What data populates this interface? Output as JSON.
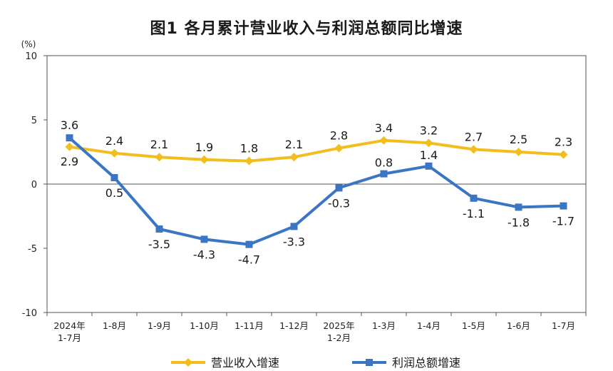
{
  "title": "图1  各月累计营业收入与利润总额同比增速",
  "chart_data": {
    "type": "line",
    "unit_label": "(%)",
    "ylim": [
      -10,
      10
    ],
    "yticks": [
      10,
      5,
      0,
      -5,
      -10
    ],
    "grid": false,
    "legend_position": "bottom",
    "categories": [
      [
        "2024年",
        "1-7月"
      ],
      [
        "1-8月"
      ],
      [
        "1-9月"
      ],
      [
        "1-10月"
      ],
      [
        "1-11月"
      ],
      [
        "1-12月"
      ],
      [
        "2025年",
        "1-2月"
      ],
      [
        "1-3月"
      ],
      [
        "1-4月"
      ],
      [
        "1-5月"
      ],
      [
        "1-6月"
      ],
      [
        "1-7月"
      ]
    ],
    "series": [
      {
        "name": "营业收入增速",
        "color": "#F2BE1E",
        "marker": "diamond",
        "values": [
          2.9,
          2.4,
          2.1,
          1.9,
          1.8,
          2.1,
          2.8,
          3.4,
          3.2,
          2.7,
          2.5,
          2.3
        ],
        "labels": [
          "2.9",
          "2.4",
          "2.1",
          "1.9",
          "1.8",
          "2.1",
          "2.8",
          "3.4",
          "3.2",
          "2.7",
          "2.5",
          "2.3"
        ]
      },
      {
        "name": "利润总额增速",
        "color": "#3A76C4",
        "marker": "square",
        "values": [
          3.6,
          0.5,
          -3.5,
          -4.3,
          -4.7,
          -3.3,
          -0.3,
          0.8,
          1.4,
          -1.1,
          -1.8,
          -1.7
        ],
        "labels": [
          "3.6",
          "0.5",
          "-3.5",
          "-4.3",
          "-4.7",
          "-3.3",
          "-0.3",
          "0.8",
          "1.4",
          "-1.1",
          "-1.8",
          "-1.7"
        ]
      }
    ]
  }
}
